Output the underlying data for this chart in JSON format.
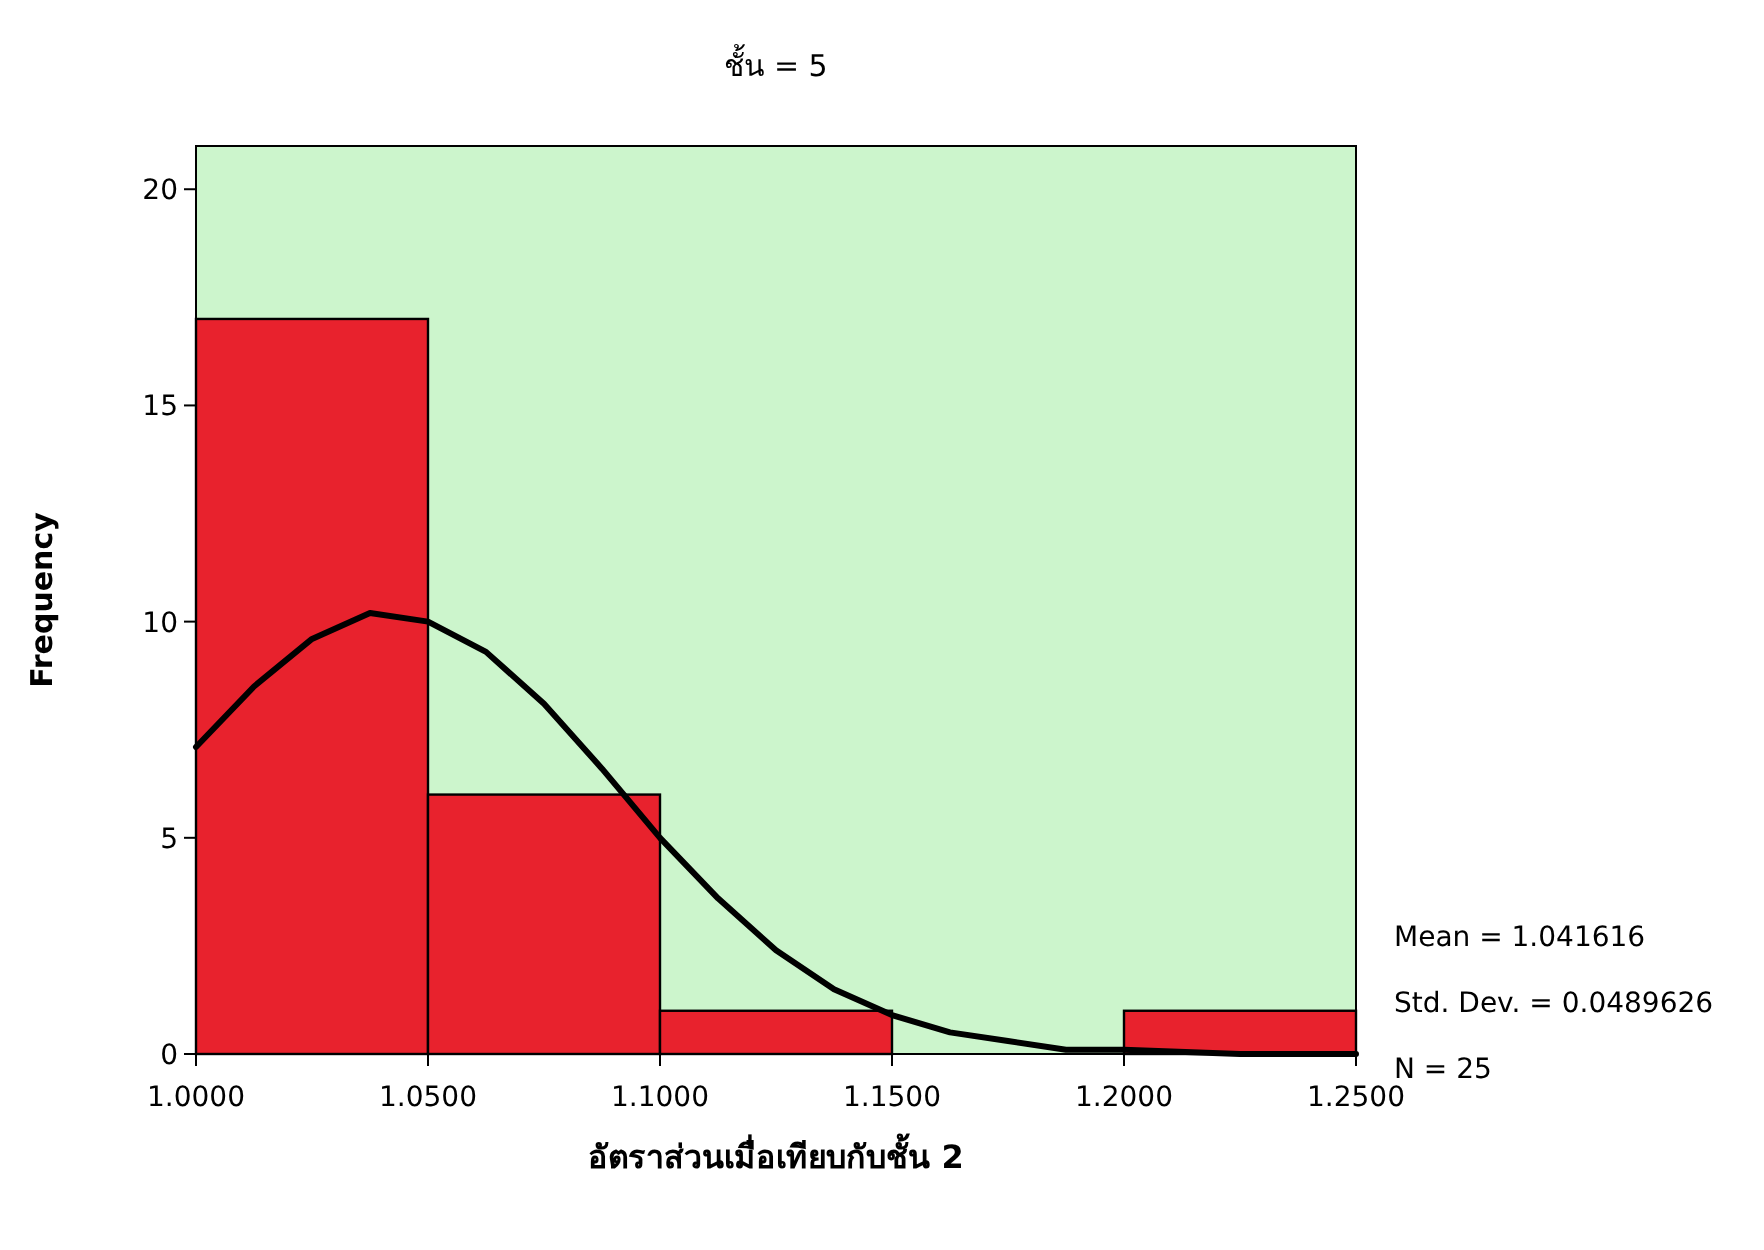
{
  "chart_data": {
    "type": "histogram",
    "title": "ชั้น = 5",
    "xlabel": "อัตราส่วนเมื่อเทียบกับชั้น 2",
    "ylabel": "Frequency",
    "bins": [
      1.0,
      1.05,
      1.1,
      1.15,
      1.2,
      1.25
    ],
    "values": [
      17,
      6,
      1,
      0,
      1
    ],
    "color": "#e8222d",
    "series": [
      {
        "type": "line",
        "color": "#000000",
        "x": [
          1.0,
          1.0125,
          1.025,
          1.0375,
          1.05,
          1.0625,
          1.075,
          1.0875,
          1.1,
          1.1125,
          1.125,
          1.1375,
          1.15,
          1.1625,
          1.175,
          1.1875,
          1.2,
          1.225,
          1.25
        ],
        "values": [
          7.1,
          8.5,
          9.6,
          10.2,
          10.0,
          9.3,
          8.1,
          6.6,
          5.0,
          3.6,
          2.4,
          1.5,
          0.9,
          0.5,
          0.3,
          0.1,
          0.1,
          0.0,
          0.0
        ]
      }
    ],
    "xlim": [
      1.0,
      1.25
    ],
    "ylim": [
      0,
      21
    ],
    "xticks": [
      {
        "value": 1.0,
        "label": "1.0000"
      },
      {
        "value": 1.05,
        "label": "1.0500"
      },
      {
        "value": 1.1,
        "label": "1.1000"
      },
      {
        "value": 1.15,
        "label": "1.1500"
      },
      {
        "value": 1.2,
        "label": "1.2000"
      },
      {
        "value": 1.25,
        "label": "1.2500"
      }
    ],
    "yticks": [
      0,
      5,
      10,
      15,
      20
    ],
    "annotations": [
      "Mean = 1.041616",
      "Std. Dev. = 0.0489626",
      "N = 25"
    ],
    "grid": false
  }
}
